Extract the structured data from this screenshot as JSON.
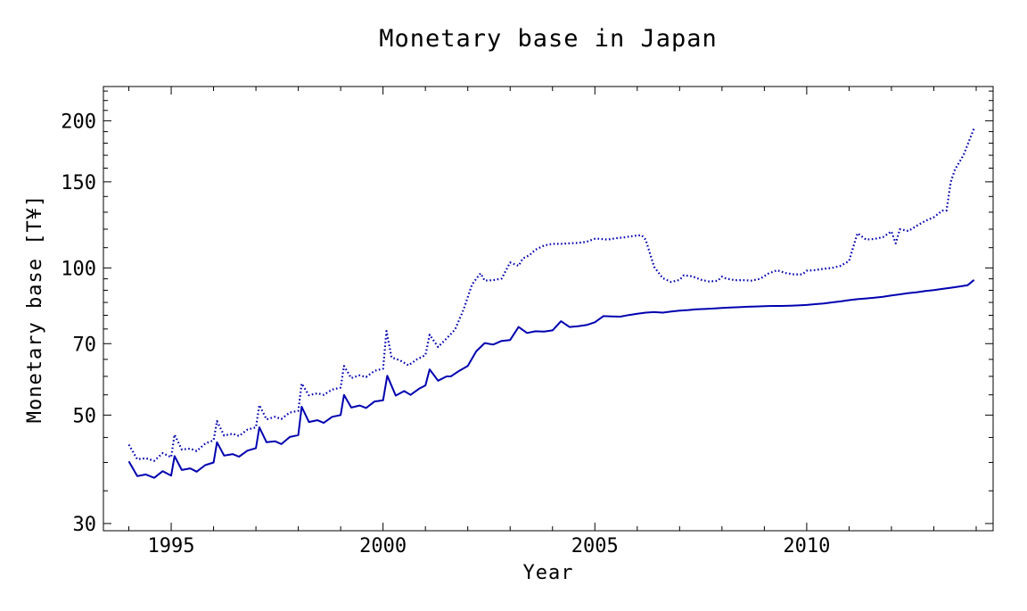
{
  "chart_data": {
    "type": "line",
    "title": "Monetary base in Japan",
    "xlabel": "Year",
    "ylabel": "Monetary base [T¥]",
    "xlim": [
      1993.4,
      2014.4
    ],
    "ylim": [
      29,
      235
    ],
    "yscale": "log",
    "grid": false,
    "xticks": [
      1995,
      2000,
      2005,
      2010
    ],
    "yticks": [
      30,
      50,
      70,
      100,
      150,
      200
    ],
    "series": [
      {
        "style": "solid",
        "color": "#0000b0",
        "x": [
          1994.0,
          1994.2,
          1994.4,
          1994.6,
          1994.8,
          1995.0,
          1995.08,
          1995.25,
          1995.45,
          1995.6,
          1995.8,
          1996.0,
          1996.08,
          1996.25,
          1996.45,
          1996.6,
          1996.8,
          1997.0,
          1997.08,
          1997.25,
          1997.45,
          1997.6,
          1997.8,
          1998.0,
          1998.08,
          1998.25,
          1998.45,
          1998.6,
          1998.8,
          1999.0,
          1999.08,
          1999.25,
          1999.45,
          1999.6,
          1999.8,
          2000.0,
          2000.1,
          2000.3,
          2000.5,
          2000.65,
          2000.85,
          2001.0,
          2001.1,
          2001.3,
          2001.5,
          2001.6,
          2001.8,
          2002.0,
          2002.2,
          2002.4,
          2002.6,
          2002.8,
          2003.0,
          2003.2,
          2003.4,
          2003.6,
          2003.8,
          2004.0,
          2004.2,
          2004.4,
          2004.6,
          2004.8,
          2005.0,
          2005.2,
          2005.4,
          2005.6,
          2005.8,
          2006.0,
          2006.2,
          2006.4,
          2006.6,
          2006.8,
          2007.0,
          2007.2,
          2007.4,
          2007.6,
          2007.8,
          2008.0,
          2008.2,
          2008.4,
          2008.6,
          2008.8,
          2009.0,
          2009.2,
          2009.4,
          2009.6,
          2009.8,
          2010.0,
          2010.2,
          2010.4,
          2010.6,
          2010.8,
          2011.0,
          2011.2,
          2011.4,
          2011.6,
          2011.8,
          2012.0,
          2012.2,
          2012.4,
          2012.6,
          2012.8,
          2013.0,
          2013.2,
          2013.4,
          2013.6,
          2013.8,
          2013.95
        ],
        "y": [
          40.2,
          37.5,
          37.8,
          37.2,
          38.4,
          37.6,
          41.2,
          38.6,
          38.9,
          38.3,
          39.5,
          40.0,
          44.0,
          41.3,
          41.6,
          41.1,
          42.3,
          42.8,
          47.2,
          44.0,
          44.2,
          43.6,
          45.1,
          45.5,
          52.0,
          48.4,
          48.8,
          48.2,
          49.6,
          50.0,
          55.0,
          51.8,
          52.3,
          51.7,
          53.3,
          53.6,
          60.2,
          54.8,
          56.0,
          55.0,
          56.6,
          57.5,
          62.0,
          58.8,
          60.0,
          60.0,
          61.6,
          63.0,
          67.5,
          70.2,
          69.7,
          70.9,
          71.2,
          75.7,
          73.6,
          74.2,
          74.1,
          74.5,
          77.8,
          75.7,
          76.0,
          76.4,
          77.4,
          79.7,
          79.6,
          79.5,
          80.1,
          80.6,
          81.0,
          81.2,
          81.0,
          81.4,
          81.8,
          82.0,
          82.3,
          82.4,
          82.6,
          82.8,
          83.0,
          83.1,
          83.3,
          83.4,
          83.5,
          83.6,
          83.6,
          83.7,
          83.8,
          84.0,
          84.3,
          84.6,
          85.0,
          85.4,
          85.9,
          86.3,
          86.6,
          86.9,
          87.3,
          87.8,
          88.3,
          88.8,
          89.2,
          89.7,
          90.1,
          90.6,
          91.1,
          91.6,
          92.2,
          94.5
        ]
      },
      {
        "style": "dotted",
        "color": "#0000b0",
        "x": [
          1994.0,
          1994.2,
          1994.4,
          1994.6,
          1994.8,
          1995.0,
          1995.08,
          1995.25,
          1995.45,
          1995.6,
          1995.8,
          1996.0,
          1996.08,
          1996.25,
          1996.45,
          1996.6,
          1996.8,
          1997.0,
          1997.08,
          1997.25,
          1997.45,
          1997.6,
          1997.8,
          1998.0,
          1998.08,
          1998.25,
          1998.45,
          1998.6,
          1998.8,
          1999.0,
          1999.08,
          1999.25,
          1999.45,
          1999.6,
          1999.8,
          2000.0,
          2000.08,
          2000.2,
          2000.4,
          2000.6,
          2000.8,
          2001.0,
          2001.1,
          2001.3,
          2001.5,
          2001.7,
          2001.9,
          2002.1,
          2002.3,
          2002.4,
          2002.6,
          2002.8,
          2003.0,
          2003.2,
          2003.3,
          2003.45,
          2003.6,
          2003.8,
          2004.0,
          2004.2,
          2004.4,
          2004.6,
          2004.8,
          2005.0,
          2005.1,
          2005.3,
          2005.5,
          2005.7,
          2005.9,
          2006.1,
          2006.2,
          2006.4,
          2006.6,
          2006.8,
          2007.0,
          2007.1,
          2007.3,
          2007.5,
          2007.7,
          2007.9,
          2008.0,
          2008.1,
          2008.3,
          2008.5,
          2008.7,
          2008.9,
          2009.1,
          2009.3,
          2009.5,
          2009.7,
          2009.9,
          2010.0,
          2010.2,
          2010.4,
          2010.6,
          2010.8,
          2011.0,
          2011.1,
          2011.2,
          2011.4,
          2011.6,
          2011.8,
          2012.0,
          2012.1,
          2012.2,
          2012.4,
          2012.6,
          2012.8,
          2013.0,
          2013.2,
          2013.3,
          2013.4,
          2013.5,
          2013.7,
          2013.95
        ],
        "y": [
          43.5,
          40.6,
          40.8,
          40.3,
          41.8,
          41.0,
          45.6,
          42.5,
          42.7,
          42.2,
          43.7,
          44.4,
          48.6,
          45.4,
          45.8,
          45.3,
          46.7,
          47.2,
          52.4,
          49.0,
          49.6,
          49.1,
          50.6,
          51.0,
          58.0,
          54.9,
          55.4,
          55.0,
          56.4,
          56.9,
          63.0,
          59.5,
          60.3,
          59.8,
          61.6,
          62.2,
          74.3,
          65.6,
          64.7,
          63.2,
          65.0,
          66.3,
          73.0,
          68.9,
          71.7,
          74.8,
          82.2,
          92.5,
          97.5,
          94.2,
          94.4,
          95.1,
          102.6,
          101.0,
          104.6,
          106.1,
          109.0,
          111.1,
          112.0,
          112.0,
          112.3,
          112.5,
          113.1,
          114.7,
          114.7,
          114.3,
          115.0,
          115.5,
          116.2,
          116.7,
          114.2,
          100.5,
          95.3,
          93.6,
          94.5,
          96.6,
          96.1,
          94.6,
          93.8,
          94.1,
          96.0,
          95.1,
          94.4,
          94.4,
          94.2,
          95.0,
          97.4,
          98.9,
          97.6,
          97.0,
          97.0,
          98.7,
          99.0,
          99.6,
          100.0,
          101.0,
          103.3,
          110.5,
          117.8,
          114.3,
          114.6,
          115.6,
          118.8,
          112.3,
          120.0,
          119.0,
          122.0,
          124.8,
          127.0,
          131.0,
          131.0,
          150.0,
          159.0,
          170.0,
          193.0
        ]
      }
    ]
  }
}
